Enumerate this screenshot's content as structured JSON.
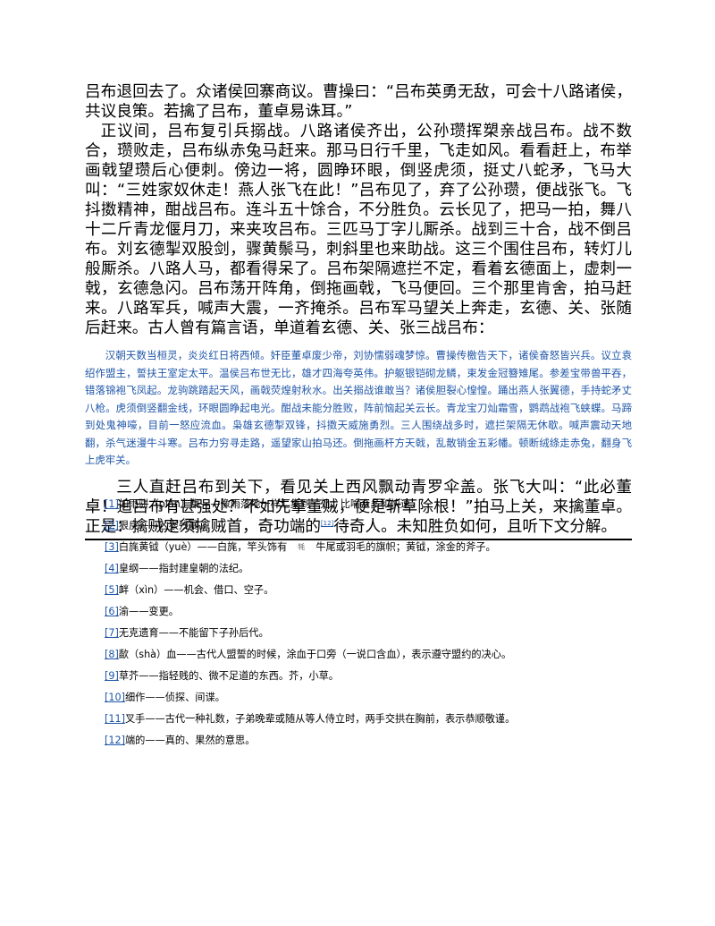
{
  "body": {
    "p1": "吕布退回去了。众诸侯回寨商议。曹操曰：“吕布英勇无敌，可会十八路诸侯，共议良策。若擒了吕布，董卓易诛耳。”",
    "p2": "正议间，吕布复引兵搦战。八路诸侯齐出，公孙瓒挥槊亲战吕布。战不数合，瓒败走，吕布纵赤兔马赶来。那马日行千里，飞走如风。看看赶上，布举画戟望瓒后心便刺。傍边一将，圆睁环眼，倒竖虎须，挺丈八蛇矛，飞马大叫：“三姓家奴休走！燕人张飞在此！”吕布见了，弃了公孙瓒，便战张飞。飞抖擞精神，酣战吕布。连斗五十馀合，不分胜负。云长见了，把马一拍，舞八十二斤青龙偃月刀，来夹攻吕布。三匹马丁字儿厮杀。战到三十合，战不倒吕布。刘玄德掣双股剑，骤黄鬃马，刺斜里也来助战。这三个围住吕布，转灯儿般厮杀。八路人马，都看得呆了。吕布架隔遮拦不定，看着玄德面上，虚刺一戟，玄德急闪。吕布荡开阵角，倒拖画戟，飞马便回。三个那里肯舍，拍马赶来。八路军兵，喊声大震，一齐掩杀。吕布军马望关上奔走，玄德、关、张随后赶来。古人曾有篇言语，单道着玄德、关、张三战吕布：",
    "poem": "汉朝天数当桓灵，炎炎红日将西倾。奸臣董卓废少帝，刘协懦弱魂梦惊。曹操传檄告天下，诸侯奋怒皆兴兵。议立袁绍作盟主，誓扶王室定太平。温侯吕布世无比，雄才四海夸英伟。护躯银铠砌龙鳞，束发金冠簪雉尾。参差宝带兽平吞，错落锦袍飞凤起。龙驹跳踏起天风，画戟荧煌射秋水。出关搦战谁敢当？诸侯胆裂心惶惶。踊出燕人张翼德，手持蛇矛丈八枪。虎须倒竖翻金线，环眼圆睁起电光。酣战未能分胜败，阵前恼起关云长。青龙宝刀灿霜雪，鹦鹉战袍飞蛱蝶。马蹄到处鬼神嚎，目前一怒应流血。枭雄玄德掣双锋，抖擞天威施勇烈。三人围绕战多时，遮拦架隔无休歇。喊声震动天地翻，杀气迷漫牛斗寒。吕布力穷寻走路，遥望家山拍马还。倒拖画杆方天戟，乱散销金五彩幡。顿断绒绦走赤兔，翻身飞上虎牢关。",
    "p3a": "三人直赶吕布到关下，看见关上西风飘动青罗伞盖。张飞大叫：“此必董卓！追吕布有甚强处？不如先拿董贼，便是斩草除根！”拍马上关，来擒董卓。正是：擒贼定须擒贼首，奇功端的",
    "p3ref": "[12]",
    "p3b": "待奇人。未知胜负如何，且听下文分解。"
  },
  "notes": [
    {
      "ref": "[1]",
      "text": "如雨骈（pián）集——像雨落地一样汇集到一处，比喻众多和快速。"
    },
    {
      "ref": "[2]",
      "text": "狠戾——凶狠残暴。"
    },
    {
      "ref": "[3]",
      "text": "白旄黄钺（yuè）——白旄，竿头饰有",
      "glyph": "牦",
      "text2": "牛尾或羽毛的旗帜；黄钺，涂金的斧子。"
    },
    {
      "ref": "[4]",
      "text": "皇纲——指封建皇朝的法纪。"
    },
    {
      "ref": "[5]",
      "text": "衅（xìn）——机会、借口、空子。"
    },
    {
      "ref": "[6]",
      "text": "渝——变更。"
    },
    {
      "ref": "[7]",
      "text": "无克遗育——不能留下子孙后代。"
    },
    {
      "ref": "[8]",
      "text": "歃（shà）血——古代人盟誓的时候，涂血于口旁（一说口含血），表示遵守盟约的决心。"
    },
    {
      "ref": "[9]",
      "text": "草芥——指轻贱的、微不足道的东西。芥，小草。"
    },
    {
      "ref": "[10]",
      "text": "细作——侦探、间谍。"
    },
    {
      "ref": "[11]",
      "text": "叉手——古代一种礼数，子弟晚辈或随从等人侍立时，两手交拱在胸前，表示恭顺敬谨。"
    },
    {
      "ref": "[12]",
      "text": "端的——真的、果然的意思。"
    }
  ],
  "colors": {
    "link": "#1f56a8",
    "poem": "#1f56a8",
    "text": "#000000"
  }
}
